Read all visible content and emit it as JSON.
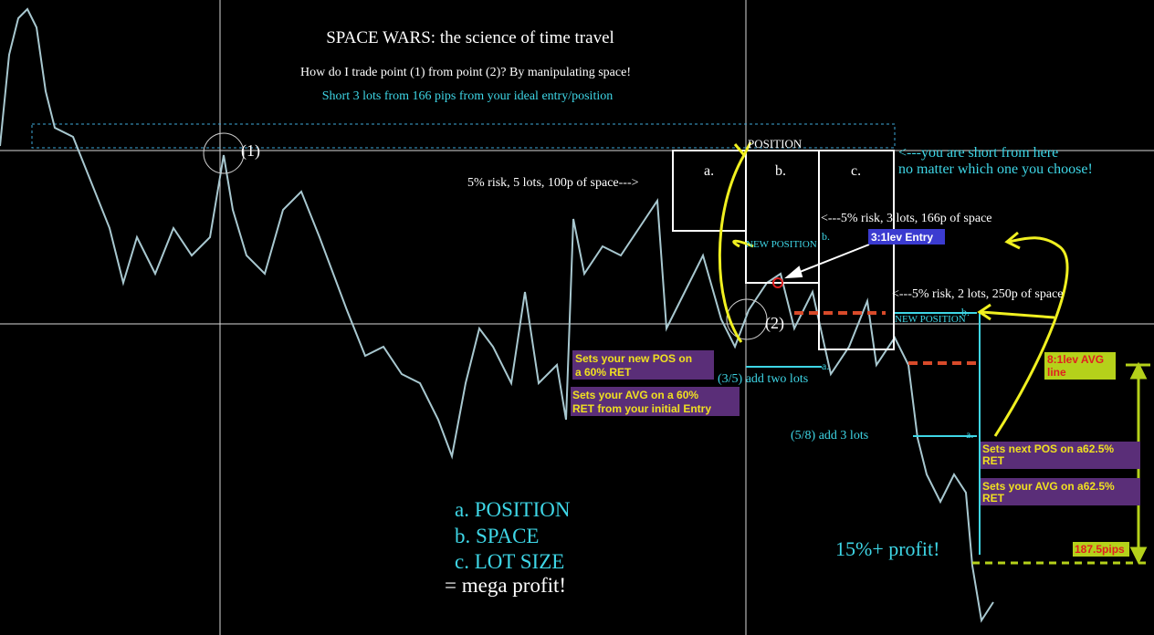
{
  "header": {
    "title": "SPACE WARS: the science of time travel",
    "question": "How do I trade point (1) from point (2)?  By manipulating space!",
    "instruction": "Short 3 lots from 166 pips from your ideal entry/position"
  },
  "points": {
    "one": "(1)",
    "two": "(2)"
  },
  "boxes": {
    "heading": "POSITION",
    "a": "a.",
    "b": "b.",
    "c": "c."
  },
  "notes": {
    "short_here": [
      "<---you are short from here",
      "no matter which one you choose!"
    ],
    "risk_a": "5% risk, 5 lots, 100p of space--->",
    "risk_b": "<---5% risk, 3 lots, 166p of space",
    "risk_c": "<---5% risk, 2 lots, 250p of space",
    "b_mark_left": "b.",
    "new_position_left": "NEW POSITION",
    "entry_label": "3:1lev Entry",
    "a_mark_left": "a.",
    "add_two": "(3/5) add two lots",
    "new_pos_60": [
      "Sets your new POS on",
      "a 60% RET"
    ],
    "avg_60": [
      "Sets your AVG on a 60%",
      "RET from your initial Entry"
    ],
    "add_three": "(5/8) add 3 lots",
    "a_mark_right": "a.",
    "b_mark_right": "b.",
    "new_position_right": "NEW POSITION",
    "avg_line": [
      "8:1lev AVG",
      "line"
    ],
    "next_pos": [
      "Sets next POS on a62.5%",
      "RET"
    ],
    "avg_625": [
      "Sets your AVG on a62.5%",
      "RET"
    ],
    "profit": "15%+ profit!",
    "pips": "187.5pips"
  },
  "recipe": [
    "a. POSITION",
    "b. SPACE",
    "c. LOT SIZE",
    "= mega profit!"
  ]
}
